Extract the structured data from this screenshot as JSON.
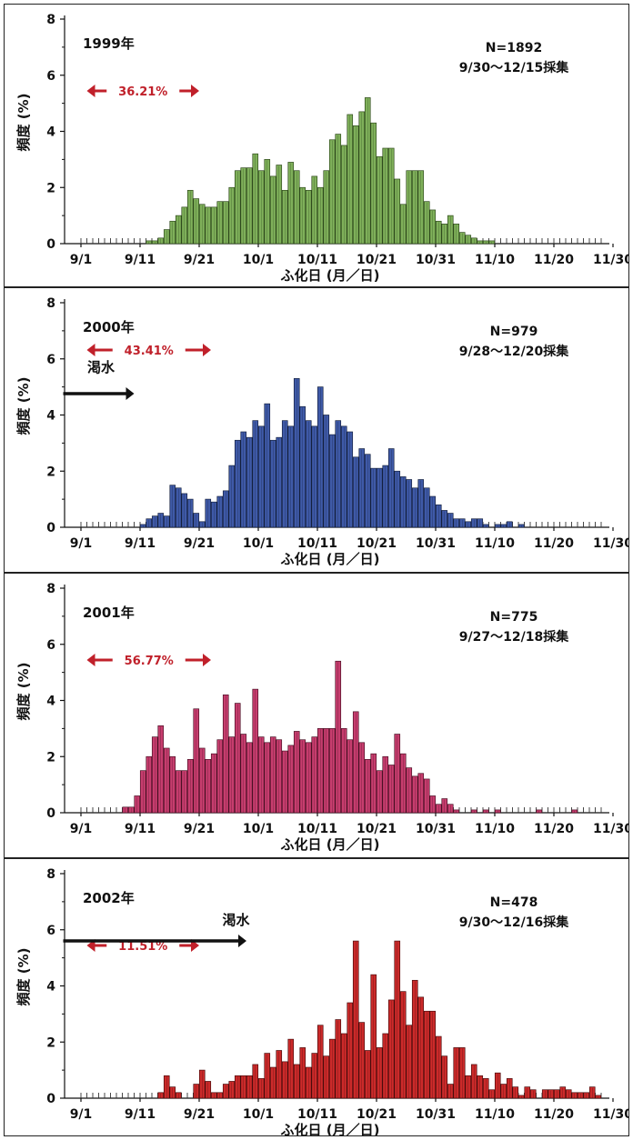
{
  "chart_data": [
    {
      "type": "bar",
      "panel_label": "1999年",
      "n_label": "N=1892",
      "collection_label": "9/30〜12/15採集",
      "percent_label": "36.21%",
      "drought_label": "",
      "xlabel": "ふ化日 (月／日)",
      "ylabel": "頻度 (%)",
      "xticks": [
        "9/1",
        "9/11",
        "9/21",
        "10/1",
        "10/11",
        "10/21",
        "10/31",
        "11/10",
        "11/20",
        "11/30"
      ],
      "ylim": [
        0,
        8
      ],
      "yticks": [
        "0",
        "2",
        "4",
        "6",
        "8"
      ],
      "color": "#7fb05a",
      "stroke": "#2f4a1c",
      "x_start": "9/1",
      "values": [
        0,
        0,
        0,
        0,
        0,
        0,
        0,
        0,
        0,
        0,
        0,
        0.1,
        0.1,
        0.2,
        0.5,
        0.8,
        1.0,
        1.3,
        1.9,
        1.6,
        1.4,
        1.3,
        1.3,
        1.5,
        1.5,
        2.0,
        2.6,
        2.7,
        2.7,
        3.2,
        2.6,
        3.0,
        2.4,
        2.8,
        1.9,
        2.9,
        2.6,
        2.0,
        1.9,
        2.4,
        2.0,
        2.6,
        3.7,
        3.9,
        3.5,
        4.6,
        4.2,
        4.7,
        5.2,
        4.3,
        3.1,
        3.4,
        3.4,
        2.3,
        1.4,
        2.6,
        2.6,
        2.6,
        1.5,
        1.2,
        0.8,
        0.7,
        1.0,
        0.7,
        0.4,
        0.3,
        0.2,
        0.1,
        0.1,
        0.1,
        0,
        0,
        0,
        0,
        0,
        0,
        0,
        0,
        0,
        0,
        0,
        0,
        0,
        0,
        0,
        0,
        0,
        0,
        0,
        0
      ],
      "percent_arrow_days": [
        1,
        20
      ],
      "drought_arrow_days": null
    },
    {
      "type": "bar",
      "panel_label": "2000年",
      "n_label": "N=979",
      "collection_label": "9/28〜12/20採集",
      "percent_label": "43.41%",
      "drought_label": "渇水",
      "xlabel": "ふ化日 (月／日)",
      "ylabel": "頻度 (%)",
      "xticks": [
        "9/1",
        "9/11",
        "9/21",
        "10/1",
        "10/11",
        "10/21",
        "10/31",
        "11/10",
        "11/20",
        "11/30"
      ],
      "ylim": [
        0,
        8
      ],
      "yticks": [
        "0",
        "2",
        "4",
        "6",
        "8"
      ],
      "color": "#3f5aa8",
      "stroke": "#15213f",
      "x_start": "9/1",
      "values": [
        0,
        0,
        0,
        0,
        0,
        0,
        0,
        0,
        0,
        0,
        0.1,
        0.3,
        0.4,
        0.5,
        0.4,
        1.5,
        1.4,
        1.2,
        1.0,
        0.5,
        0.2,
        1.0,
        0.9,
        1.1,
        1.3,
        2.2,
        3.1,
        3.4,
        3.2,
        3.8,
        3.6,
        4.4,
        3.1,
        3.2,
        3.8,
        3.6,
        5.3,
        4.3,
        3.8,
        3.6,
        5.0,
        4.0,
        3.3,
        3.8,
        3.6,
        3.4,
        2.5,
        2.8,
        2.6,
        2.1,
        2.1,
        2.2,
        2.8,
        2.0,
        1.8,
        1.7,
        1.4,
        1.7,
        1.4,
        1.1,
        0.8,
        0.6,
        0.5,
        0.3,
        0.3,
        0.2,
        0.3,
        0.3,
        0.1,
        0,
        0.1,
        0.1,
        0.2,
        0,
        0.1,
        0,
        0,
        0,
        0,
        0,
        0,
        0,
        0,
        0,
        0,
        0,
        0,
        0,
        0,
        0
      ],
      "percent_arrow_days": [
        1,
        22
      ],
      "drought_arrow_days": [
        -3,
        9
      ]
    },
    {
      "type": "bar",
      "panel_label": "2001年",
      "n_label": "N=775",
      "collection_label": "9/27〜12/18採集",
      "percent_label": "56.77%",
      "drought_label": "",
      "xlabel": "ふ化日 (月／日)",
      "ylabel": "頻度 (%)",
      "xticks": [
        "9/1",
        "9/11",
        "9/21",
        "10/1",
        "10/11",
        "10/21",
        "10/31",
        "11/10",
        "11/20",
        "11/30"
      ],
      "ylim": [
        0,
        8
      ],
      "yticks": [
        "0",
        "2",
        "4",
        "6",
        "8"
      ],
      "color": "#c73d6e",
      "stroke": "#4a1025",
      "x_start": "9/1",
      "values": [
        0,
        0,
        0,
        0,
        0,
        0,
        0,
        0.2,
        0.2,
        0.6,
        1.5,
        2.0,
        2.7,
        3.1,
        2.3,
        2.0,
        1.5,
        1.5,
        1.9,
        3.7,
        2.3,
        1.9,
        2.1,
        2.6,
        4.2,
        2.7,
        3.9,
        2.8,
        2.5,
        4.4,
        2.7,
        2.5,
        2.7,
        2.6,
        2.2,
        2.4,
        2.9,
        2.6,
        2.5,
        2.7,
        3.0,
        3.0,
        3.0,
        5.4,
        3.0,
        2.6,
        3.6,
        2.5,
        1.9,
        2.1,
        1.5,
        2.0,
        1.7,
        2.8,
        2.1,
        1.6,
        1.3,
        1.4,
        1.2,
        0.6,
        0.3,
        0.5,
        0.3,
        0.1,
        0,
        0,
        0.1,
        0,
        0.1,
        0,
        0.1,
        0,
        0,
        0,
        0,
        0,
        0,
        0.1,
        0,
        0,
        0,
        0,
        0,
        0.1,
        0,
        0,
        0,
        0,
        0,
        0
      ],
      "percent_arrow_days": [
        1,
        22
      ],
      "drought_arrow_days": null
    },
    {
      "type": "bar",
      "panel_label": "2002年",
      "n_label": "N=478",
      "collection_label": "9/30〜12/16採集",
      "percent_label": "11.51%",
      "drought_label": "渇水",
      "xlabel": "ふ化日 (月／日)",
      "ylabel": "頻度 (%)",
      "xticks": [
        "9/1",
        "9/11",
        "9/21",
        "10/1",
        "10/11",
        "10/21",
        "10/31",
        "11/10",
        "11/20",
        "11/30"
      ],
      "ylim": [
        0,
        8
      ],
      "yticks": [
        "0",
        "2",
        "4",
        "6",
        "8"
      ],
      "color": "#cc2a2a",
      "stroke": "#4a0d0d",
      "x_start": "9/1",
      "values": [
        0,
        0,
        0,
        0,
        0,
        0,
        0,
        0,
        0,
        0,
        0,
        0,
        0,
        0.2,
        0.8,
        0.4,
        0.2,
        0,
        0,
        0.5,
        1.0,
        0.6,
        0.2,
        0.2,
        0.5,
        0.6,
        0.8,
        0.8,
        0.8,
        1.2,
        0.7,
        1.6,
        1.1,
        1.7,
        1.3,
        2.1,
        1.2,
        1.8,
        1.1,
        1.6,
        2.6,
        1.5,
        2.1,
        2.8,
        2.3,
        3.4,
        5.6,
        2.7,
        1.7,
        4.4,
        1.8,
        2.3,
        3.5,
        5.6,
        3.8,
        2.6,
        4.2,
        3.6,
        3.1,
        3.1,
        2.2,
        1.5,
        0.5,
        1.8,
        1.8,
        0.8,
        1.2,
        0.8,
        0.7,
        0.3,
        0.9,
        0.5,
        0.7,
        0.4,
        0.1,
        0.4,
        0.3,
        0,
        0.3,
        0.3,
        0.3,
        0.4,
        0.3,
        0.2,
        0.2,
        0.2,
        0.4,
        0.1,
        0,
        0
      ],
      "percent_arrow_days": [
        1,
        20
      ],
      "drought_arrow_days": [
        -3,
        28
      ]
    }
  ]
}
